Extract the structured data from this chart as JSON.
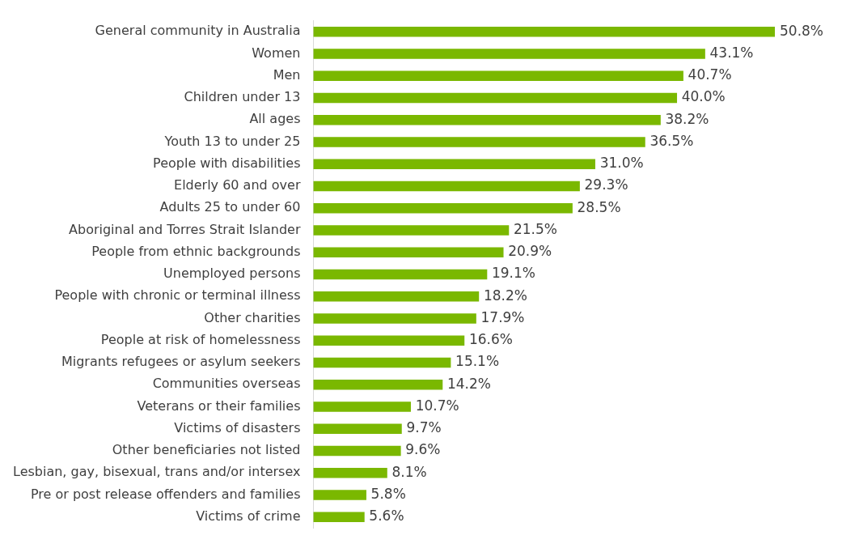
{
  "chart_data": {
    "type": "bar",
    "orientation": "horizontal",
    "categories": [
      "General community in Australia",
      "Women",
      "Men",
      "Children under 13",
      "All ages",
      "Youth 13 to under 25",
      "People with disabilities",
      "Elderly 60 and over",
      "Adults 25 to under 60",
      "Aboriginal and Torres Strait Islander",
      "People from ethnic backgrounds",
      "Unemployed persons",
      "People with chronic or terminal illness",
      "Other charities",
      "People at risk of homelessness",
      "Migrants refugees or asylum seekers",
      "Communities overseas",
      "Veterans or their families",
      "Victims of disasters",
      "Other beneficiaries not listed",
      "Lesbian, gay, bisexual, trans and/or intersex",
      "Pre or post release offenders and families",
      "Victims of crime"
    ],
    "values": [
      50.8,
      43.1,
      40.7,
      40.0,
      38.2,
      36.5,
      31.0,
      29.3,
      28.5,
      21.5,
      20.9,
      19.1,
      18.2,
      17.9,
      16.6,
      15.1,
      14.2,
      10.7,
      9.7,
      9.6,
      8.1,
      5.8,
      5.6
    ],
    "value_labels": [
      "50.8%",
      "43.1%",
      "40.7%",
      "40.0%",
      "38.2%",
      "36.5%",
      "31.0%",
      "29.3%",
      "28.5%",
      "21.5%",
      "20.9%",
      "19.1%",
      "18.2%",
      "17.9%",
      "16.6%",
      "15.1%",
      "14.2%",
      "10.7%",
      "9.7%",
      "9.6%",
      "8.1%",
      "5.8%",
      "5.6%"
    ],
    "color": "#7ab800",
    "legend": false
  }
}
